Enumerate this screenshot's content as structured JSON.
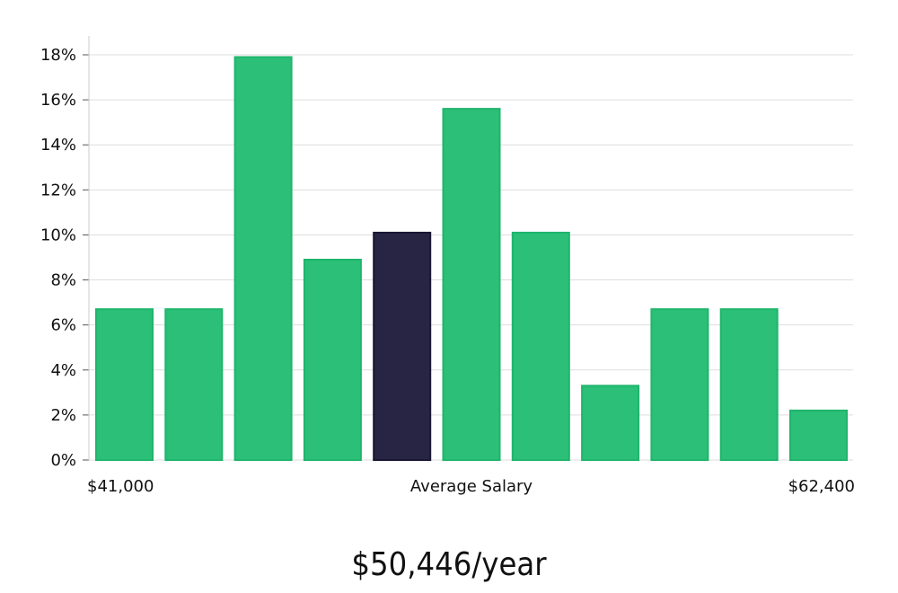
{
  "chart_data": {
    "type": "bar",
    "categories": [
      "",
      "",
      "",
      "",
      "",
      "",
      "",
      "",
      "",
      "",
      ""
    ],
    "values": [
      6.7,
      6.7,
      17.9,
      8.9,
      10.1,
      15.6,
      10.1,
      3.3,
      6.7,
      6.7,
      2.2
    ],
    "highlight_index": 4,
    "ylim": [
      0,
      18
    ],
    "yticks": [
      "0%",
      "2%",
      "4%",
      "6%",
      "8%",
      "10%",
      "12%",
      "14%",
      "16%",
      "18%"
    ],
    "ytick_values": [
      0,
      2,
      4,
      6,
      8,
      10,
      12,
      14,
      16,
      18
    ],
    "x_labels": {
      "left": "$41,000",
      "center": "Average Salary",
      "right": "$62,400"
    },
    "grid": true,
    "legend": "none"
  },
  "colors": {
    "bar": "#2bbf78",
    "bar_stroke": "#1fb56c",
    "highlight": "#272444",
    "grid": "#dddddd",
    "axis": "#cccccc"
  },
  "headline": "$50,446/year"
}
